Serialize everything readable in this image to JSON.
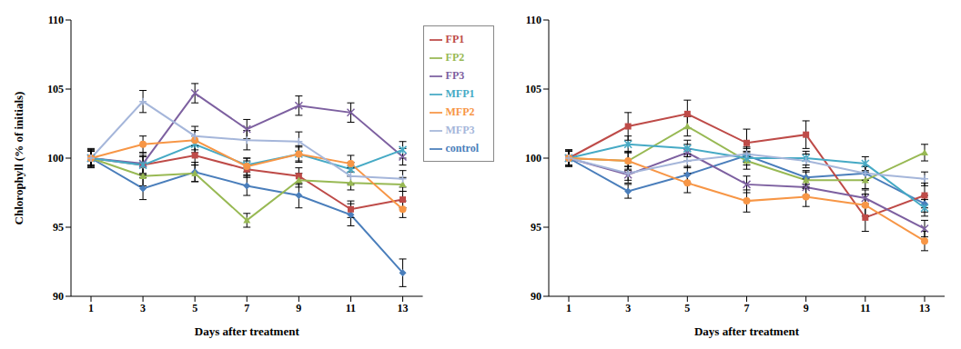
{
  "chart_data": [
    {
      "type": "line",
      "xlabel": "Days after treatment",
      "ylabel": "Chlorophyll (% of initials)",
      "categories": [
        "1",
        "3",
        "5",
        "7",
        "9",
        "11",
        "13"
      ],
      "ylim": [
        90,
        110
      ],
      "yticks": [
        90,
        95,
        100,
        105,
        110
      ],
      "grid": false,
      "legend": "right",
      "series": [
        {
          "name": "control",
          "color": "#4a7ebb",
          "marker": "diamond",
          "values": [
            100,
            97.8,
            99.0,
            98.0,
            97.3,
            95.9,
            91.7
          ],
          "errors": [
            0.7,
            0.8,
            0.7,
            0.7,
            0.9,
            0.8,
            1.0
          ]
        },
        {
          "name": "FP1",
          "color": "#be4b48",
          "marker": "square",
          "values": [
            100,
            99.5,
            100.2,
            99.2,
            98.7,
            96.3,
            97.0
          ],
          "errors": [
            0.6,
            0.7,
            0.7,
            0.6,
            0.6,
            0.6,
            0.6
          ]
        },
        {
          "name": "FP2",
          "color": "#98b954",
          "marker": "triangle",
          "values": [
            100,
            98.7,
            98.9,
            95.5,
            98.4,
            98.2,
            98.1
          ],
          "errors": [
            0.6,
            0.7,
            0.6,
            0.5,
            0.5,
            0.5,
            0.5
          ]
        },
        {
          "name": "FP3",
          "color": "#7d60a0",
          "marker": "x",
          "values": [
            100,
            99.6,
            104.7,
            102.1,
            103.8,
            103.3,
            100.1
          ],
          "errors": [
            0.5,
            0.8,
            0.7,
            0.7,
            0.7,
            0.7,
            0.6
          ]
        },
        {
          "name": "MFP1",
          "color": "#46aac5",
          "marker": "star",
          "values": [
            100,
            99.5,
            101.0,
            99.5,
            100.3,
            99.2,
            100.6
          ],
          "errors": [
            0.5,
            0.6,
            0.6,
            0.5,
            0.5,
            0.5,
            0.6
          ]
        },
        {
          "name": "MFP2",
          "color": "#f79646",
          "marker": "circle",
          "values": [
            100,
            101.0,
            101.3,
            99.4,
            100.3,
            99.6,
            96.3
          ],
          "errors": [
            0.5,
            0.6,
            0.7,
            0.6,
            0.6,
            0.6,
            0.6
          ]
        },
        {
          "name": "MFP3",
          "color": "#a5b6da",
          "marker": "plus",
          "values": [
            100,
            104.1,
            101.6,
            101.3,
            101.2,
            98.7,
            98.5
          ],
          "errors": [
            0.5,
            0.8,
            0.7,
            0.7,
            0.7,
            0.6,
            0.6
          ]
        }
      ]
    },
    {
      "type": "line",
      "xlabel": "Days after treatment",
      "categories": [
        "1",
        "3",
        "5",
        "7",
        "9",
        "11",
        "13"
      ],
      "ylim": [
        90,
        110
      ],
      "yticks": [
        90,
        95,
        100,
        105,
        110
      ],
      "grid": false,
      "series": [
        {
          "name": "control",
          "color": "#4a7ebb",
          "marker": "diamond",
          "values": [
            100,
            97.6,
            98.8,
            100.2,
            98.6,
            98.9,
            96.7
          ],
          "errors": [
            0.6,
            0.5,
            0.6,
            0.5,
            0.5,
            0.5,
            0.6
          ]
        },
        {
          "name": "FP1",
          "color": "#be4b48",
          "marker": "square",
          "values": [
            100,
            102.3,
            103.2,
            101.1,
            101.7,
            95.7,
            97.3
          ],
          "errors": [
            0.6,
            1.0,
            1.0,
            1.0,
            1.0,
            1.0,
            0.9
          ]
        },
        {
          "name": "FP2",
          "color": "#98b954",
          "marker": "triangle",
          "values": [
            100,
            99.8,
            102.3,
            99.8,
            98.4,
            98.4,
            100.4
          ],
          "errors": [
            0.5,
            0.6,
            0.7,
            0.6,
            0.6,
            0.6,
            0.6
          ]
        },
        {
          "name": "FP3",
          "color": "#7d60a0",
          "marker": "x",
          "values": [
            100,
            98.8,
            100.4,
            98.1,
            97.9,
            97.1,
            94.9
          ],
          "errors": [
            0.5,
            0.6,
            0.6,
            0.6,
            0.6,
            0.6,
            0.6
          ]
        },
        {
          "name": "MFP1",
          "color": "#46aac5",
          "marker": "star",
          "values": [
            100,
            101.0,
            100.7,
            100.0,
            100.0,
            99.6,
            96.4
          ],
          "errors": [
            0.5,
            0.6,
            0.6,
            0.5,
            0.5,
            0.5,
            0.6
          ]
        },
        {
          "name": "MFP2",
          "color": "#f79646",
          "marker": "circle",
          "values": [
            100,
            99.8,
            98.2,
            96.9,
            97.2,
            96.6,
            94.0
          ],
          "errors": [
            0.5,
            0.7,
            0.7,
            0.8,
            0.7,
            0.8,
            0.7
          ]
        },
        {
          "name": "MFP3",
          "color": "#a5b6da",
          "marker": "plus",
          "values": [
            100,
            98.9,
            99.8,
            100.3,
            99.8,
            98.9,
            98.5
          ],
          "errors": [
            0.5,
            0.5,
            0.5,
            0.5,
            0.5,
            0.5,
            0.5
          ]
        }
      ]
    }
  ]
}
